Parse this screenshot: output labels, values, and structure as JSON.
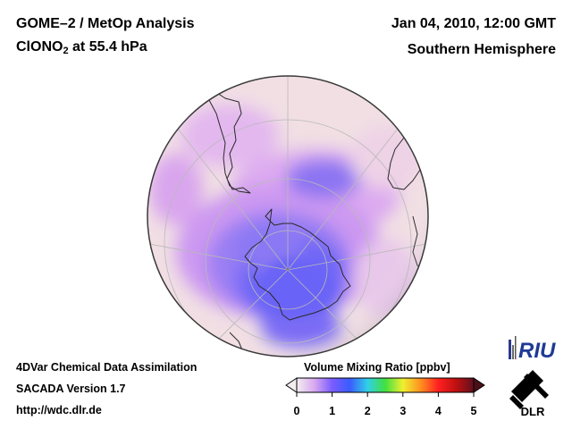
{
  "header": {
    "title_line1": "GOME–2 / MetOp Analysis",
    "species_main": "ClONO",
    "species_sub": "2",
    "pressure_text": " at 55.4 hPa",
    "datetime": "Jan 04, 2010, 12:00 GMT",
    "region": "Southern Hemisphere"
  },
  "footer": {
    "line1": "4DVar Chemical Data Assimilation",
    "line2": "SACADA Version 1.7",
    "line3": "http://wdc.dlr.de"
  },
  "colorbar": {
    "title": "Volume Mixing Ratio [ppbv]",
    "ticks": [
      "0",
      "1",
      "2",
      "3",
      "4",
      "5"
    ],
    "min": 0,
    "max": 5,
    "stops": [
      "#f2eef0",
      "#d9a8f0",
      "#7a5cff",
      "#3a5cff",
      "#30d0e8",
      "#40e040",
      "#f0f030",
      "#ff9020",
      "#ff2020",
      "#c01010",
      "#601020"
    ]
  },
  "logos": {
    "riu_text": "RIU",
    "dlr_text": "DLR"
  },
  "colors": {
    "globe_base": "#f1dfe4",
    "low_ratio": "#e3b8ef",
    "mid_ratio": "#c48cf0",
    "high_ratio": "#6f67f5",
    "coast": "#2a2a2a",
    "grid": "#b9b9b9"
  }
}
